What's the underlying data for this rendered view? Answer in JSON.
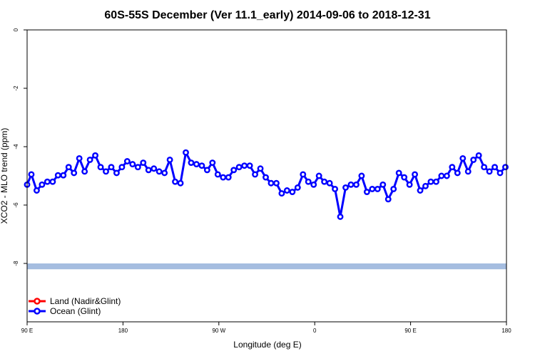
{
  "chart_data": {
    "type": "line",
    "title": "60S-55S December (Ver 11.1_early)   2014-09-06 to 2018-12-31",
    "xlabel": "Longitude (deg E)",
    "ylabel": "XCO2 - MLO trend (ppm)",
    "xlim": [
      90,
      540
    ],
    "ylim": [
      -10,
      0
    ],
    "x_ticks": [
      {
        "value": 90,
        "label": "90 E"
      },
      {
        "value": 180,
        "label": "180"
      },
      {
        "value": 270,
        "label": "90 W"
      },
      {
        "value": 360,
        "label": "0"
      },
      {
        "value": 450,
        "label": "90 E"
      },
      {
        "value": 540,
        "label": "180"
      }
    ],
    "y_ticks": [
      {
        "value": 0,
        "label": "0"
      },
      {
        "value": -2,
        "label": "-2"
      },
      {
        "value": -4,
        "label": "-4"
      },
      {
        "value": -6,
        "label": "-6"
      },
      {
        "value": -8,
        "label": "-8"
      }
    ],
    "band": {
      "y_from": -8.0,
      "y_to": -8.2,
      "color": "#a5bde0"
    },
    "series": [
      {
        "name": "Land (Nadir&Glint)",
        "color": "#ff0000",
        "x": [],
        "y": []
      },
      {
        "name": "Ocean (Glint)",
        "color": "#0000ff",
        "x": [
          90,
          94,
          99,
          104,
          109,
          114,
          119,
          124,
          129,
          134,
          139,
          144,
          149,
          154,
          159,
          164,
          169,
          174,
          179,
          184,
          189,
          194,
          199,
          204,
          209,
          214,
          219,
          224,
          229,
          234,
          239,
          244,
          249,
          254,
          259,
          264,
          269,
          274,
          279,
          284,
          289,
          294,
          299,
          304,
          309,
          314,
          319,
          324,
          329,
          334,
          339,
          344,
          349,
          354,
          359,
          364,
          369,
          374,
          379,
          384,
          389,
          394,
          399,
          404,
          409,
          414,
          419,
          424,
          429,
          434,
          439,
          444,
          449,
          454,
          459,
          464,
          469,
          474,
          479,
          484,
          489,
          494,
          499,
          504,
          509,
          514,
          519,
          524,
          529,
          534,
          539
        ],
        "y": [
          -5.3,
          -4.95,
          -5.5,
          -5.3,
          -5.2,
          -5.2,
          -4.98,
          -4.98,
          -4.7,
          -4.9,
          -4.4,
          -4.85,
          -4.45,
          -4.3,
          -4.7,
          -4.85,
          -4.7,
          -4.9,
          -4.7,
          -4.5,
          -4.6,
          -4.7,
          -4.55,
          -4.8,
          -4.75,
          -4.85,
          -4.9,
          -4.45,
          -5.2,
          -5.25,
          -4.2,
          -4.55,
          -4.6,
          -4.65,
          -4.8,
          -4.55,
          -4.95,
          -5.05,
          -5.05,
          -4.8,
          -4.7,
          -4.65,
          -4.65,
          -4.95,
          -4.75,
          -5.05,
          -5.25,
          -5.25,
          -5.6,
          -5.5,
          -5.55,
          -5.4,
          -4.95,
          -5.2,
          -5.3,
          -5.0,
          -5.2,
          -5.25,
          -5.45,
          -6.4,
          -5.4,
          -5.3,
          -5.3,
          -5.0,
          -5.55,
          -5.45,
          -5.45,
          -5.3,
          -5.8,
          -5.45,
          -4.9,
          -5.05,
          -5.3,
          -4.95,
          -5.5,
          -5.35,
          -5.2,
          -5.2,
          -5.0,
          -5.0,
          -4.7,
          -4.9,
          -4.4,
          -4.85,
          -4.45,
          -4.3,
          -4.7,
          -4.85,
          -4.7,
          -4.9,
          -4.7
        ]
      }
    ]
  }
}
